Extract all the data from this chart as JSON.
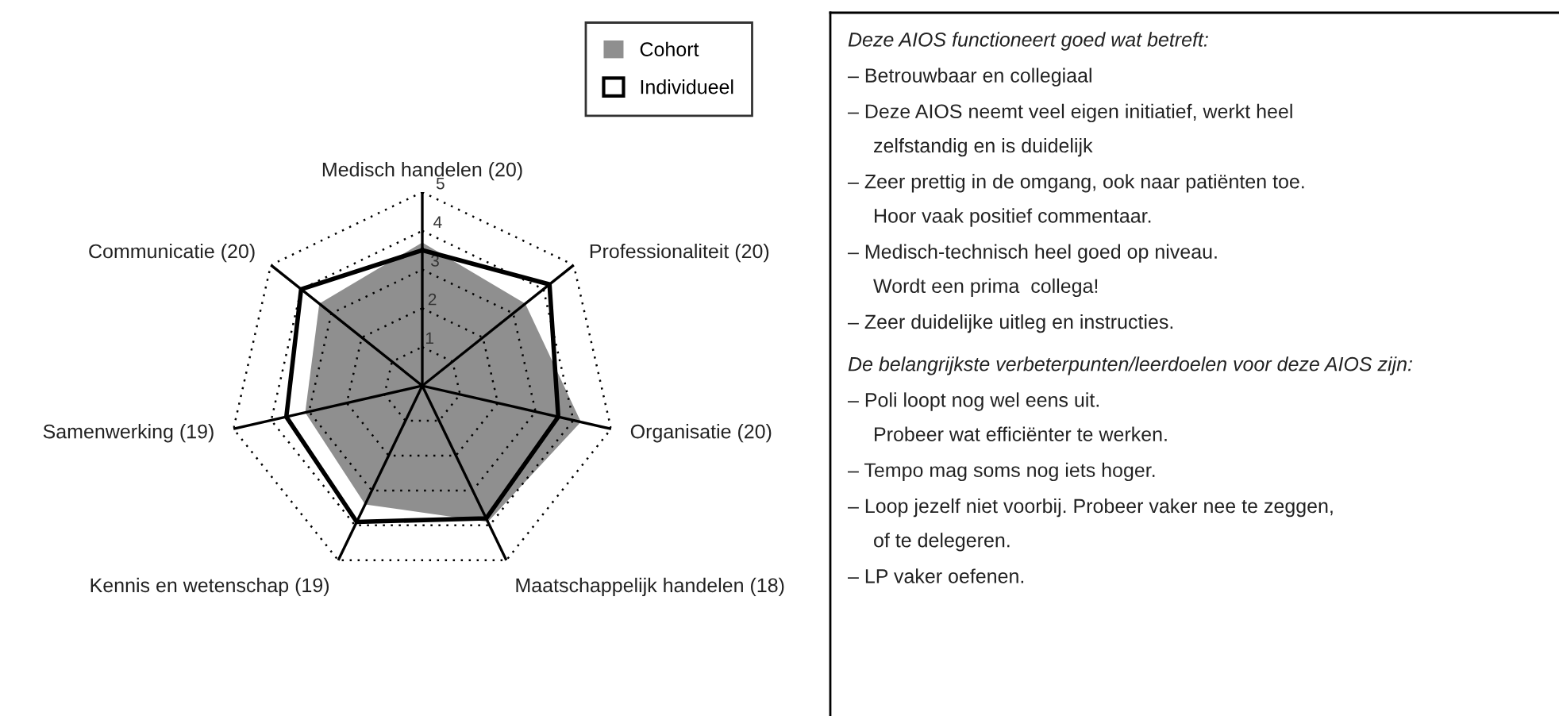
{
  "chart_data": [
    {
      "type": "radar",
      "categories": [
        "Medisch handelen (20)",
        "Professionaliteit (20)",
        "Organisatie (20)",
        "Maatschappelijk handelen (18)",
        "Kennis en wetenschap (19)",
        "Samenwerking (19)",
        "Communicatie (20)"
      ],
      "series": [
        {
          "name": "Cohort",
          "color": "#8f8f8f",
          "values": [
            3.7,
            3.4,
            4.2,
            3.9,
            3.4,
            3.1,
            3.4
          ]
        },
        {
          "name": "Individueel",
          "color": "#000000",
          "values": [
            3.5,
            4.2,
            3.6,
            3.8,
            3.9,
            3.6,
            4.0
          ]
        }
      ],
      "ylim": [
        0,
        5
      ],
      "yticks": [
        1,
        2,
        3,
        4,
        5
      ],
      "grid": true,
      "legend": "top right"
    },
    {
      "type": "other",
      "title": "Deze AIOS functioneert goed wat betreft:",
      "annotations": [
        "– Betrouwbaar en collegiaal",
        "– Deze AIOS neemt veel eigen initiatief, werkt heel\nzelfstandig en is duidelijk",
        "– Zeer prettig in de omgang, ook naar patiënten toe.\nHoor vaak positief commentaar.",
        "– Medisch-technisch heel goed op niveau.\nWordt een prima  collega!",
        "– Zeer duidelijke uitleg en instructies."
      ]
    },
    {
      "type": "other",
      "title": "De belangrijkste verbeterpunten/leerdoelen voor deze AIOS zijn:",
      "annotations": [
        "– Poli loopt nog wel eens uit.\nProbeer wat efficiënter te werken.",
        "– Tempo mag soms nog iets hoger.",
        "– Loop jezelf niet voorbij. Probeer vaker nee te zeggen,\nof te delegeren.",
        "– LP vaker oefenen."
      ]
    }
  ]
}
